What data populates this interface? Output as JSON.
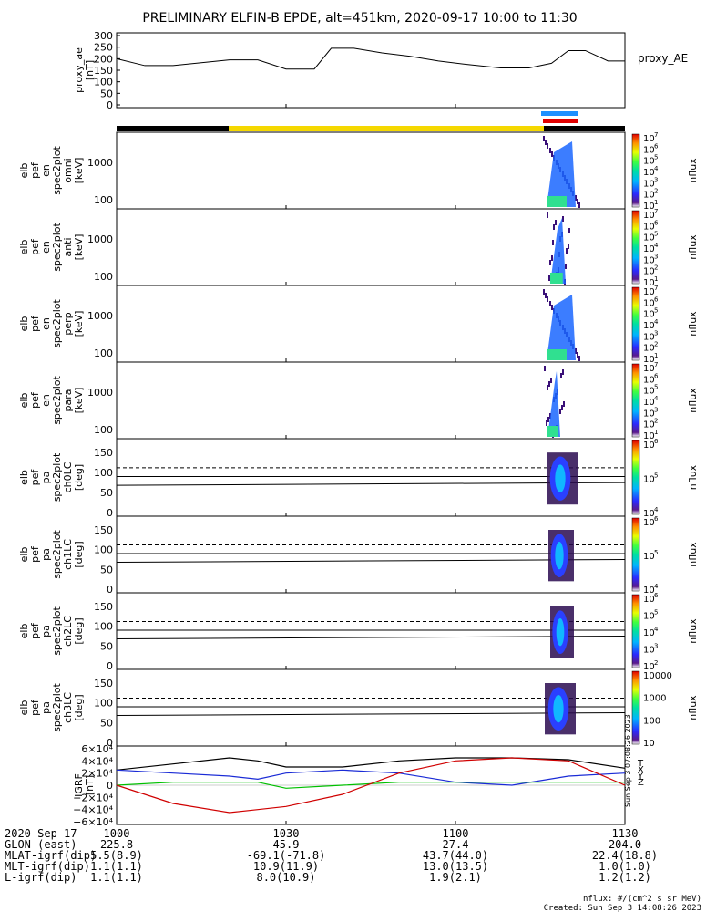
{
  "title": "PRELIMINARY ELFIN-B EPDE, alt=451km, 2020-09-17 10:00 to 11:30",
  "colors": {
    "blue_bar": "#1e90ff",
    "red_bar": "#e00000",
    "yellow_bar": "#f5d800",
    "bx": "#1a2bd6",
    "by": "#00c000",
    "bz": "#d00000",
    "bt": "#000000"
  },
  "panels": {
    "ae": {
      "ylabel": [
        "proxy_ae",
        "[nT]"
      ],
      "ticks": [
        "300",
        "250",
        "200",
        "150",
        "100",
        "50",
        "0"
      ],
      "legend": "proxy_AE"
    },
    "en_omni": {
      "ylabel": [
        "elb",
        "pef",
        "en",
        "spec2plot",
        "omni",
        "[keV]"
      ],
      "ticks": [
        "1000",
        "100"
      ],
      "cbar_ticks": [
        "10",
        "10",
        "10",
        "10",
        "10",
        "10",
        "10"
      ],
      "cbar_exps": [
        "7",
        "6",
        "5",
        "4",
        "3",
        "2",
        "1"
      ],
      "cbar_label": "nflux"
    },
    "en_anti": {
      "ylabel": [
        "elb",
        "pef",
        "en",
        "spec2plot",
        "anti",
        "[keV]"
      ],
      "ticks": [
        "1000",
        "100"
      ],
      "cbar_ticks": [
        "10",
        "10",
        "10",
        "10",
        "10",
        "10",
        "10"
      ],
      "cbar_exps": [
        "7",
        "6",
        "5",
        "4",
        "3",
        "2",
        "1"
      ],
      "cbar_label": "nflux"
    },
    "en_perp": {
      "ylabel": [
        "elb",
        "pef",
        "en",
        "spec2plot",
        "perp",
        "[keV]"
      ],
      "ticks": [
        "1000",
        "100"
      ],
      "cbar_ticks": [
        "10",
        "10",
        "10",
        "10",
        "10",
        "10",
        "10"
      ],
      "cbar_exps": [
        "7",
        "6",
        "5",
        "4",
        "3",
        "2",
        "1"
      ],
      "cbar_label": "nflux"
    },
    "en_para": {
      "ylabel": [
        "elb",
        "pef",
        "en",
        "spec2plot",
        "para",
        "[keV]"
      ],
      "ticks": [
        "1000",
        "100"
      ],
      "cbar_ticks": [
        "10",
        "10",
        "10",
        "10",
        "10",
        "10",
        "10"
      ],
      "cbar_exps": [
        "7",
        "6",
        "5",
        "4",
        "3",
        "2",
        "1"
      ],
      "cbar_label": "nflux"
    },
    "pa_ch0": {
      "ylabel": [
        "elb",
        "pef",
        "pa",
        "spec2plot",
        "ch0LC",
        "[deg]"
      ],
      "ticks": [
        "150",
        "100",
        "50",
        "0"
      ],
      "cbar_ticks": [
        "10",
        "10",
        "10"
      ],
      "cbar_exps": [
        "6",
        "5",
        "4"
      ],
      "cbar_label": "nflux"
    },
    "pa_ch1": {
      "ylabel": [
        "elb",
        "pef",
        "pa",
        "spec2plot",
        "ch1LC",
        "[deg]"
      ],
      "ticks": [
        "150",
        "100",
        "50",
        "0"
      ],
      "cbar_ticks": [
        "10",
        "10",
        "10"
      ],
      "cbar_exps": [
        "6",
        "5",
        "4"
      ],
      "cbar_label": "nflux"
    },
    "pa_ch2": {
      "ylabel": [
        "elb",
        "pef",
        "pa",
        "spec2plot",
        "ch2LC",
        "[deg]"
      ],
      "ticks": [
        "150",
        "100",
        "50",
        "0"
      ],
      "cbar_ticks": [
        "10",
        "10",
        "10",
        "10",
        "10"
      ],
      "cbar_exps": [
        "6",
        "5",
        "4",
        "3",
        "2"
      ],
      "cbar_label": "nflux"
    },
    "pa_ch3": {
      "ylabel": [
        "elb",
        "pef",
        "pa",
        "spec2plot",
        "ch3LC",
        "[deg]"
      ],
      "ticks": [
        "150",
        "100",
        "50",
        "0"
      ],
      "cbar_ticks": [
        "10000",
        "1000",
        "100",
        "10"
      ],
      "cbar_exps": [
        "",
        "",
        "",
        ""
      ],
      "cbar_label": "nflux"
    },
    "igrf": {
      "ylabel": [
        "IGRF",
        "[nT]"
      ],
      "ticks": [
        "6×10⁴",
        "4×10⁴",
        "2×10⁴",
        "0",
        "−2×10⁴",
        "−4×10⁴",
        "−6×10⁴"
      ],
      "legend": [
        "T",
        "X",
        "Y",
        "Z"
      ]
    }
  },
  "footer_rows": [
    {
      "label": "2020 Sep 17",
      "vals": [
        "1000",
        "1030",
        "1100",
        "1130"
      ]
    },
    {
      "label": "GLON (east)",
      "vals": [
        "225.8",
        "45.9",
        "27.4",
        "204.0"
      ]
    },
    {
      "label": "MLAT-igrf(dip)",
      "vals": [
        "5.5(8.9)",
        "-69.1(-71.8)",
        "43.7(44.0)",
        "22.4(18.8)"
      ]
    },
    {
      "label": "MLT-igrf(dip)",
      "vals": [
        "1.1(1.1)",
        "10.9(11.9)",
        "13.0(13.5)",
        "1.0(1.0)"
      ]
    },
    {
      "label": "L-igrf(dip)",
      "vals": [
        "1.1(1.1)",
        "8.0(10.9)",
        "1.9(2.1)",
        "1.2(1.2)"
      ]
    }
  ],
  "footnote1": "nflux: #/(cm^2 s sr MeV)",
  "footnote2": "Created: Sun Sep  3 14:08:26 2023",
  "side_stamp": "Sun Sep  3 07:08:26 2023",
  "chart_data": {
    "type": "line",
    "title": "PRELIMINARY ELFIN-B EPDE, alt=451km, 2020-09-17 10:00 to 11:30",
    "x_ticks": [
      "1000",
      "1030",
      "1100",
      "1130"
    ],
    "proxy_ae": {
      "x_min": [
        0,
        5,
        10,
        20,
        25,
        30,
        35,
        38,
        42,
        47,
        52,
        57,
        62,
        68,
        73,
        77,
        80,
        83,
        87,
        90
      ],
      "values": [
        200,
        170,
        170,
        195,
        195,
        155,
        155,
        245,
        245,
        225,
        210,
        190,
        175,
        160,
        160,
        180,
        235,
        235,
        190,
        190
      ],
      "ylim": [
        0,
        300
      ]
    },
    "igrf": {
      "x_min": [
        0,
        10,
        20,
        25,
        30,
        40,
        50,
        60,
        70,
        80,
        90
      ],
      "T": [
        25000,
        35000,
        45000,
        40000,
        30000,
        30000,
        40000,
        45000,
        45000,
        42000,
        28000
      ],
      "X": [
        25000,
        20000,
        15000,
        10000,
        20000,
        25000,
        20000,
        5000,
        0,
        15000,
        20000
      ],
      "Y": [
        0,
        5000,
        5000,
        5000,
        -5000,
        0,
        5000,
        5000,
        5000,
        5000,
        5000
      ],
      "Z": [
        0,
        -30000,
        -45000,
        -40000,
        -35000,
        -15000,
        20000,
        40000,
        45000,
        40000,
        0
      ],
      "ylim": [
        -60000,
        60000
      ]
    }
  }
}
